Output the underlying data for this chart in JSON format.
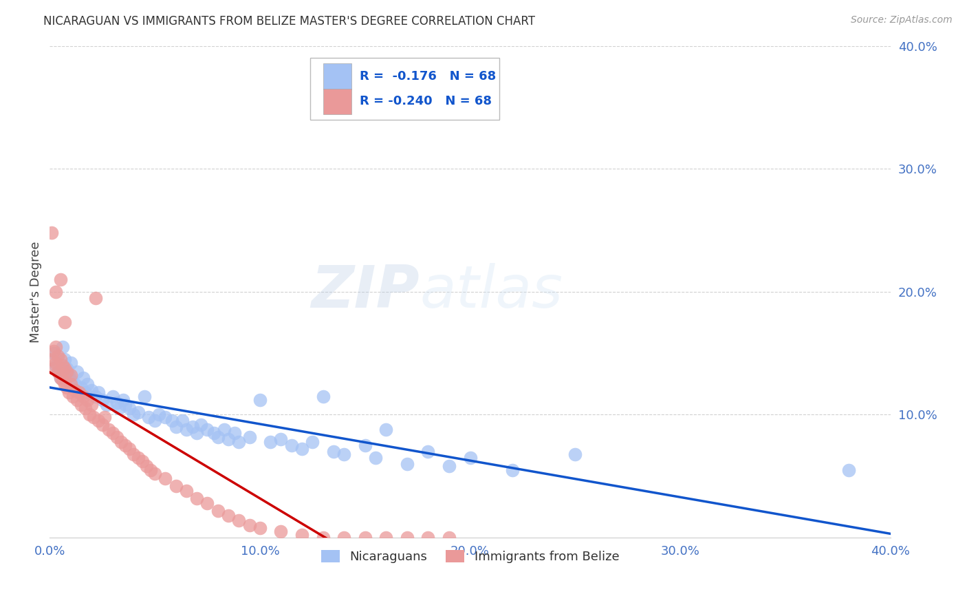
{
  "title": "NICARAGUAN VS IMMIGRANTS FROM BELIZE MASTER'S DEGREE CORRELATION CHART",
  "source": "Source: ZipAtlas.com",
  "tick_color": "#4472C4",
  "ylabel": "Master's Degree",
  "watermark_zip": "ZIP",
  "watermark_atlas": "atlas",
  "xlim": [
    0.0,
    0.4
  ],
  "ylim": [
    0.0,
    0.4
  ],
  "xticks": [
    0.0,
    0.1,
    0.2,
    0.3,
    0.4
  ],
  "yticks": [
    0.1,
    0.2,
    0.3,
    0.4
  ],
  "xticklabels": [
    "0.0%",
    "10.0%",
    "20.0%",
    "30.0%",
    "40.0%"
  ],
  "yticklabels": [
    "10.0%",
    "20.0%",
    "30.0%",
    "40.0%"
  ],
  "blue_R": "-0.176",
  "blue_N": "68",
  "pink_R": "-0.240",
  "pink_N": "68",
  "blue_color": "#a4c2f4",
  "pink_color": "#ea9999",
  "blue_line_color": "#1155cc",
  "pink_line_color": "#cc0000",
  "legend_blue_label": "Nicaraguans",
  "legend_pink_label": "Immigrants from Belize",
  "blue_scatter_x": [
    0.002,
    0.003,
    0.004,
    0.005,
    0.006,
    0.007,
    0.008,
    0.009,
    0.01,
    0.01,
    0.012,
    0.013,
    0.015,
    0.016,
    0.017,
    0.018,
    0.02,
    0.022,
    0.023,
    0.025,
    0.027,
    0.03,
    0.032,
    0.033,
    0.035,
    0.036,
    0.038,
    0.04,
    0.042,
    0.045,
    0.047,
    0.05,
    0.052,
    0.055,
    0.058,
    0.06,
    0.063,
    0.065,
    0.068,
    0.07,
    0.072,
    0.075,
    0.078,
    0.08,
    0.083,
    0.085,
    0.088,
    0.09,
    0.095,
    0.1,
    0.105,
    0.11,
    0.115,
    0.12,
    0.125,
    0.13,
    0.135,
    0.14,
    0.15,
    0.155,
    0.16,
    0.17,
    0.18,
    0.19,
    0.2,
    0.22,
    0.25,
    0.38
  ],
  "blue_scatter_y": [
    0.15,
    0.14,
    0.135,
    0.13,
    0.155,
    0.145,
    0.138,
    0.132,
    0.128,
    0.142,
    0.125,
    0.135,
    0.122,
    0.13,
    0.118,
    0.125,
    0.12,
    0.115,
    0.118,
    0.112,
    0.108,
    0.115,
    0.11,
    0.105,
    0.112,
    0.108,
    0.105,
    0.1,
    0.102,
    0.115,
    0.098,
    0.095,
    0.1,
    0.098,
    0.095,
    0.09,
    0.095,
    0.088,
    0.09,
    0.085,
    0.092,
    0.088,
    0.085,
    0.082,
    0.088,
    0.08,
    0.085,
    0.078,
    0.082,
    0.112,
    0.078,
    0.08,
    0.075,
    0.072,
    0.078,
    0.115,
    0.07,
    0.068,
    0.075,
    0.065,
    0.088,
    0.06,
    0.07,
    0.058,
    0.065,
    0.055,
    0.068,
    0.055
  ],
  "pink_scatter_x": [
    0.001,
    0.002,
    0.002,
    0.003,
    0.003,
    0.004,
    0.004,
    0.005,
    0.005,
    0.006,
    0.006,
    0.007,
    0.007,
    0.008,
    0.008,
    0.009,
    0.01,
    0.01,
    0.011,
    0.012,
    0.013,
    0.014,
    0.015,
    0.016,
    0.017,
    0.018,
    0.019,
    0.02,
    0.021,
    0.022,
    0.023,
    0.025,
    0.026,
    0.028,
    0.03,
    0.032,
    0.034,
    0.036,
    0.038,
    0.04,
    0.042,
    0.044,
    0.046,
    0.048,
    0.05,
    0.055,
    0.06,
    0.065,
    0.07,
    0.075,
    0.08,
    0.085,
    0.09,
    0.095,
    0.1,
    0.11,
    0.12,
    0.13,
    0.14,
    0.15,
    0.16,
    0.17,
    0.18,
    0.19,
    0.001,
    0.003,
    0.005,
    0.007
  ],
  "pink_scatter_y": [
    0.145,
    0.138,
    0.152,
    0.142,
    0.155,
    0.135,
    0.148,
    0.13,
    0.145,
    0.128,
    0.14,
    0.125,
    0.138,
    0.122,
    0.135,
    0.118,
    0.125,
    0.132,
    0.115,
    0.12,
    0.112,
    0.118,
    0.108,
    0.115,
    0.105,
    0.112,
    0.1,
    0.108,
    0.098,
    0.195,
    0.095,
    0.092,
    0.098,
    0.088,
    0.085,
    0.082,
    0.078,
    0.075,
    0.072,
    0.068,
    0.065,
    0.062,
    0.058,
    0.055,
    0.052,
    0.048,
    0.042,
    0.038,
    0.032,
    0.028,
    0.022,
    0.018,
    0.014,
    0.01,
    0.008,
    0.005,
    0.002,
    0.0,
    0.0,
    0.0,
    0.0,
    0.0,
    0.0,
    0.0,
    0.248,
    0.2,
    0.21,
    0.175
  ],
  "background_color": "#ffffff",
  "grid_color": "#cccccc"
}
